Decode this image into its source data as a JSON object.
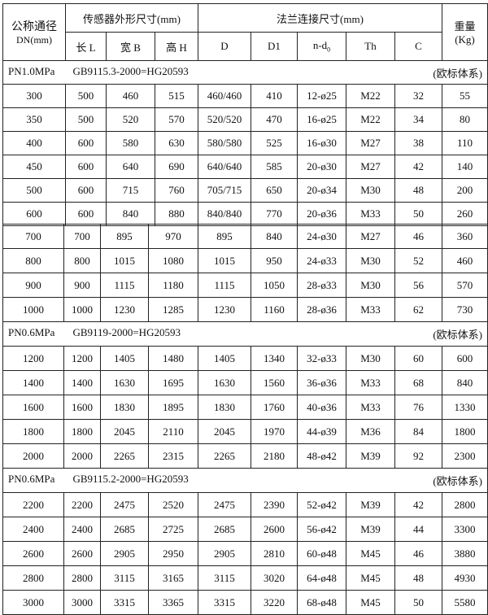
{
  "header": {
    "dn_label": "公称通径",
    "dn_unit": "DN(mm)",
    "sensor_group": "传感器外形尺寸(mm)",
    "flange_group": "法兰连接尺寸(mm)",
    "weight_label": "重量",
    "weight_unit": "(Kg)",
    "columns": [
      "长 L",
      "宽 B",
      "高 H",
      "D",
      "D1",
      "n-d",
      "Th",
      "C"
    ],
    "nd_subscript": "0"
  },
  "groups": [
    {
      "pressure": "PN1.0MPa",
      "standard": "GB9115.3-2000=HG20593",
      "system": "(欧标体系)",
      "rows": [
        [
          "300",
          "500",
          "460",
          "515",
          "460/460",
          "410",
          "12-ø25",
          "M22",
          "32",
          "55"
        ],
        [
          "350",
          "500",
          "520",
          "570",
          "520/520",
          "470",
          "16-ø25",
          "M22",
          "34",
          "80"
        ],
        [
          "400",
          "600",
          "580",
          "630",
          "580/580",
          "525",
          "16-ø30",
          "M27",
          "38",
          "110"
        ],
        [
          "450",
          "600",
          "640",
          "690",
          "640/640",
          "585",
          "20-ø30",
          "M27",
          "42",
          "140"
        ],
        [
          "500",
          "600",
          "715",
          "760",
          "705/715",
          "650",
          "20-ø34",
          "M30",
          "48",
          "200"
        ],
        [
          "600",
          "600",
          "840",
          "880",
          "840/840",
          "770",
          "20-ø36",
          "M33",
          "50",
          "260"
        ],
        [
          "700",
          "700",
          "895",
          "970",
          "895",
          "840",
          "24-ø30",
          "M27",
          "46",
          "360"
        ],
        [
          "800",
          "800",
          "1015",
          "1080",
          "1015",
          "950",
          "24-ø33",
          "M30",
          "52",
          "460"
        ],
        [
          "900",
          "900",
          "1115",
          "1180",
          "1115",
          "1050",
          "28-ø33",
          "M30",
          "56",
          "570"
        ],
        [
          "1000",
          "1000",
          "1230",
          "1285",
          "1230",
          "1160",
          "28-ø36",
          "M33",
          "62",
          "730"
        ]
      ]
    },
    {
      "pressure": "PN0.6MPa",
      "standard": "GB9119-2000=HG20593",
      "system": "(欧标体系)",
      "rows": [
        [
          "1200",
          "1200",
          "1405",
          "1480",
          "1405",
          "1340",
          "32-ø33",
          "M30",
          "60",
          "600"
        ],
        [
          "1400",
          "1400",
          "1630",
          "1695",
          "1630",
          "1560",
          "36-ø36",
          "M33",
          "68",
          "840"
        ],
        [
          "1600",
          "1600",
          "1830",
          "1895",
          "1830",
          "1760",
          "40-ø36",
          "M33",
          "76",
          "1330"
        ],
        [
          "1800",
          "1800",
          "2045",
          "2110",
          "2045",
          "1970",
          "44-ø39",
          "M36",
          "84",
          "1800"
        ],
        [
          "2000",
          "2000",
          "2265",
          "2315",
          "2265",
          "2180",
          "48-ø42",
          "M39",
          "92",
          "2300"
        ]
      ]
    },
    {
      "pressure": "PN0.6MPa",
      "standard": "GB9115.2-2000=HG20593",
      "system": "(欧标体系)",
      "rows": [
        [
          "2200",
          "2200",
          "2475",
          "2520",
          "2475",
          "2390",
          "52-ø42",
          "M39",
          "42",
          "2800"
        ],
        [
          "2400",
          "2400",
          "2685",
          "2725",
          "2685",
          "2600",
          "56-ø42",
          "M39",
          "44",
          "3300"
        ],
        [
          "2600",
          "2600",
          "2905",
          "2950",
          "2905",
          "2810",
          "60-ø48",
          "M45",
          "46",
          "3880"
        ],
        [
          "2800",
          "2800",
          "3115",
          "3165",
          "3115",
          "3020",
          "64-ø48",
          "M45",
          "48",
          "4930"
        ],
        [
          "3000",
          "3000",
          "3315",
          "3365",
          "3315",
          "3220",
          "68-ø48",
          "M45",
          "50",
          "5580"
        ]
      ]
    }
  ]
}
